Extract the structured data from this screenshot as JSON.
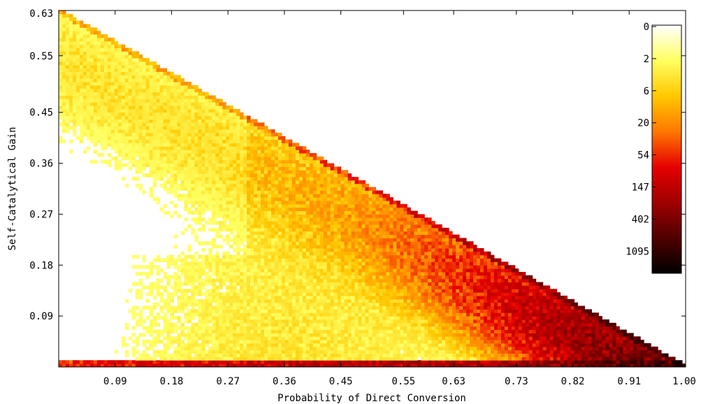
{
  "chart_data": {
    "type": "heatmap",
    "title": "",
    "xlabel": "Probability of Direct Conversion",
    "ylabel": "Self-Catalytical Gain",
    "xlim": [
      0.0,
      1.0
    ],
    "ylim": [
      0.0,
      0.63
    ],
    "x_ticks": [
      "0.09",
      "0.18",
      "0.27",
      "0.36",
      "0.45",
      "0.55",
      "0.63",
      "0.73",
      "0.82",
      "0.91",
      "1.00"
    ],
    "x_tick_values": [
      0.09,
      0.18,
      0.27,
      0.36,
      0.45,
      0.55,
      0.63,
      0.73,
      0.82,
      0.91,
      1.0
    ],
    "y_ticks": [
      "0.63",
      "0.55",
      "0.45",
      "0.36",
      "0.27",
      "0.18",
      "0.09"
    ],
    "y_tick_values": [
      0.63,
      0.55,
      0.45,
      0.36,
      0.27,
      0.18,
      0.09
    ],
    "colorbar": {
      "labels": [
        "0",
        "2",
        "6",
        "20",
        "54",
        "147",
        "402",
        "1095"
      ],
      "values": [
        0,
        2,
        6,
        20,
        54,
        147,
        402,
        1095
      ],
      "colors": [
        "#ffffff",
        "#ffff60",
        "#ffc800",
        "#ff7800",
        "#e60000",
        "#a00000",
        "#500000",
        "#000000"
      ],
      "placement": "top-right, inside plot"
    },
    "density_peaks": [
      {
        "x": 0.62,
        "y": 0.28,
        "count": 54
      },
      {
        "x": 0.75,
        "y": 0.18,
        "count": 147
      },
      {
        "x": 0.88,
        "y": 0.09,
        "count": 402
      },
      {
        "x": 0.98,
        "y": 0.01,
        "count": 1095
      },
      {
        "x": 0.36,
        "y": 0.1,
        "count": 6
      }
    ],
    "support": "triangular region below line y = 0.63 * (1 - x) with dense band along the diagonal and along y = 0",
    "grid": false
  }
}
